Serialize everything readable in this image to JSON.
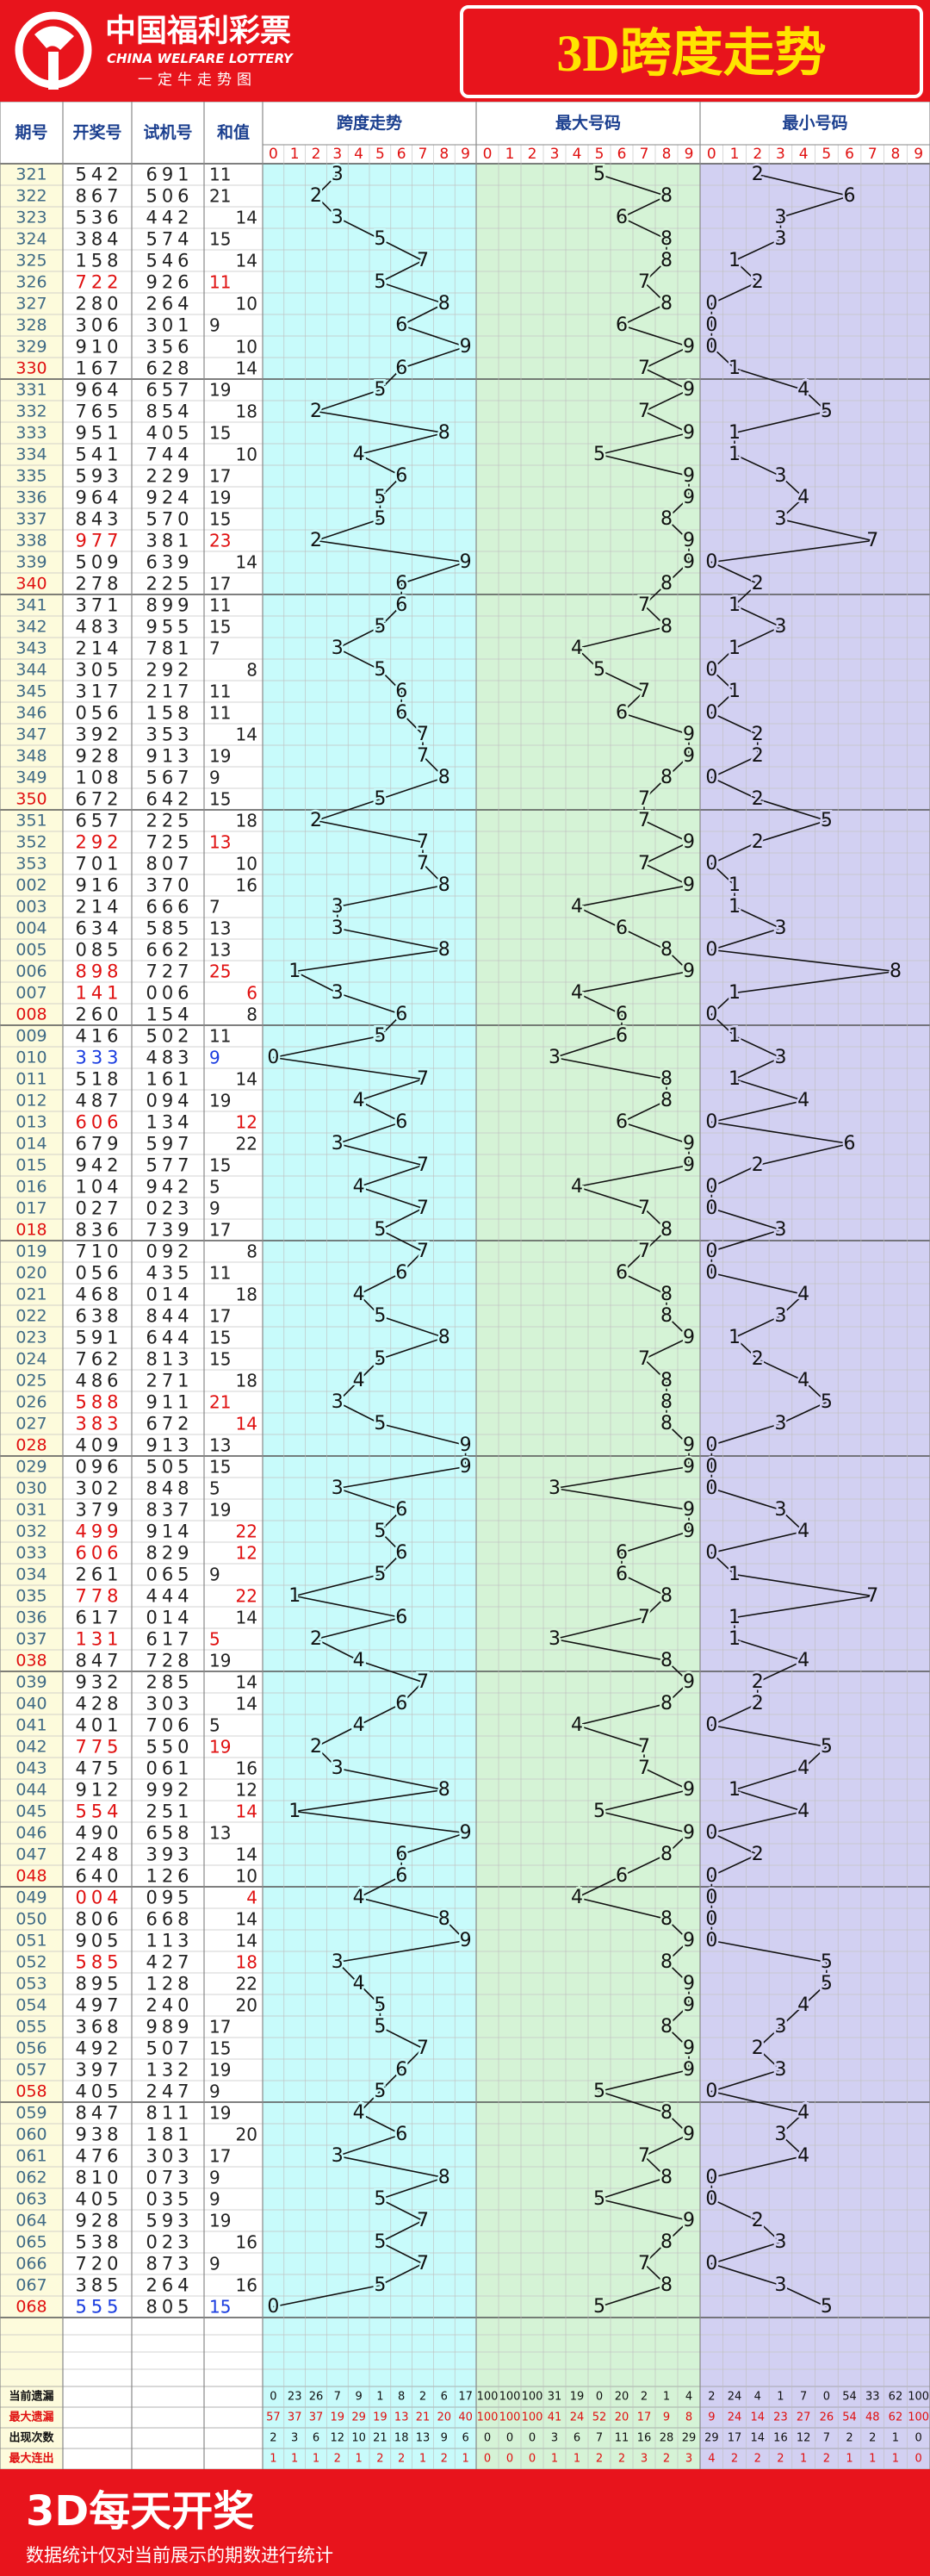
{
  "header": {
    "logo_cn": "中国福利彩票",
    "logo_en": "CHINA WELFARE LOTTERY",
    "logo_sub": "一定牛走势图",
    "title": "3D跨度走势"
  },
  "table": {
    "columns": [
      "期号",
      "开奖号",
      "试机号",
      "和值"
    ],
    "sections": [
      "跨度走势",
      "最大号码",
      "最小号码"
    ],
    "digits": [
      0,
      1,
      2,
      3,
      4,
      5,
      6,
      7,
      8,
      9
    ],
    "rows": [
      [
        "321",
        "542",
        "691",
        11,
        3,
        5,
        2
      ],
      [
        "322",
        "867",
        "506",
        21,
        2,
        8,
        6
      ],
      [
        "323",
        "536",
        "442",
        14,
        3,
        6,
        3
      ],
      [
        "324",
        "384",
        "574",
        15,
        5,
        8,
        3
      ],
      [
        "325",
        "158",
        "546",
        14,
        7,
        8,
        1
      ],
      [
        "326",
        "722",
        "926",
        11,
        5,
        7,
        2
      ],
      [
        "327",
        "280",
        "264",
        10,
        8,
        8,
        0
      ],
      [
        "328",
        "306",
        "301",
        9,
        6,
        6,
        0
      ],
      [
        "329",
        "910",
        "356",
        10,
        9,
        9,
        0
      ],
      [
        "330",
        "167",
        "628",
        14,
        6,
        7,
        1
      ],
      [
        "331",
        "964",
        "657",
        19,
        5,
        9,
        4
      ],
      [
        "332",
        "765",
        "854",
        18,
        2,
        7,
        5
      ],
      [
        "333",
        "951",
        "405",
        15,
        8,
        9,
        1
      ],
      [
        "334",
        "541",
        "744",
        10,
        4,
        5,
        1
      ],
      [
        "335",
        "593",
        "229",
        17,
        6,
        9,
        3
      ],
      [
        "336",
        "964",
        "924",
        19,
        5,
        9,
        4
      ],
      [
        "337",
        "843",
        "570",
        15,
        5,
        8,
        3
      ],
      [
        "338",
        "977",
        "381",
        23,
        2,
        9,
        7
      ],
      [
        "339",
        "509",
        "639",
        14,
        9,
        9,
        0
      ],
      [
        "340",
        "278",
        "225",
        17,
        6,
        8,
        2
      ],
      [
        "341",
        "371",
        "899",
        11,
        6,
        7,
        1
      ],
      [
        "342",
        "483",
        "955",
        15,
        5,
        8,
        3
      ],
      [
        "343",
        "214",
        "781",
        7,
        3,
        4,
        1
      ],
      [
        "344",
        "305",
        "292",
        8,
        5,
        5,
        0
      ],
      [
        "345",
        "317",
        "217",
        11,
        6,
        7,
        1
      ],
      [
        "346",
        "056",
        "158",
        11,
        6,
        6,
        0
      ],
      [
        "347",
        "392",
        "353",
        14,
        7,
        9,
        2
      ],
      [
        "348",
        "928",
        "913",
        19,
        7,
        9,
        2
      ],
      [
        "349",
        "108",
        "567",
        9,
        8,
        8,
        0
      ],
      [
        "350",
        "672",
        "642",
        15,
        5,
        7,
        2
      ],
      [
        "351",
        "657",
        "225",
        18,
        2,
        7,
        5
      ],
      [
        "352",
        "292",
        "725",
        13,
        7,
        9,
        2
      ],
      [
        "353",
        "701",
        "807",
        10,
        7,
        7,
        0
      ],
      [
        "002",
        "916",
        "370",
        16,
        8,
        9,
        1
      ],
      [
        "003",
        "214",
        "666",
        7,
        3,
        4,
        1
      ],
      [
        "004",
        "634",
        "585",
        13,
        3,
        6,
        3
      ],
      [
        "005",
        "085",
        "662",
        13,
        8,
        8,
        0
      ],
      [
        "006",
        "898",
        "727",
        25,
        1,
        9,
        8
      ],
      [
        "007",
        "141",
        "006",
        6,
        3,
        4,
        1
      ],
      [
        "008",
        "260",
        "154",
        8,
        6,
        6,
        0
      ],
      [
        "009",
        "416",
        "502",
        11,
        5,
        6,
        1
      ],
      [
        "010",
        "333",
        "483",
        9,
        0,
        3,
        3
      ],
      [
        "011",
        "518",
        "161",
        14,
        7,
        8,
        1
      ],
      [
        "012",
        "487",
        "094",
        19,
        4,
        8,
        4
      ],
      [
        "013",
        "606",
        "134",
        12,
        6,
        6,
        0
      ],
      [
        "014",
        "679",
        "597",
        22,
        3,
        9,
        6
      ],
      [
        "015",
        "942",
        "577",
        15,
        7,
        9,
        2
      ],
      [
        "016",
        "104",
        "942",
        5,
        4,
        4,
        0
      ],
      [
        "017",
        "027",
        "023",
        9,
        7,
        7,
        0
      ],
      [
        "018",
        "836",
        "739",
        17,
        5,
        8,
        3
      ],
      [
        "019",
        "710",
        "092",
        8,
        7,
        7,
        0
      ],
      [
        "020",
        "056",
        "435",
        11,
        6,
        6,
        0
      ],
      [
        "021",
        "468",
        "014",
        18,
        4,
        8,
        4
      ],
      [
        "022",
        "638",
        "844",
        17,
        5,
        8,
        3
      ],
      [
        "023",
        "591",
        "644",
        15,
        8,
        9,
        1
      ],
      [
        "024",
        "762",
        "813",
        15,
        5,
        7,
        2
      ],
      [
        "025",
        "486",
        "271",
        18,
        4,
        8,
        4
      ],
      [
        "026",
        "588",
        "911",
        21,
        3,
        8,
        5
      ],
      [
        "027",
        "383",
        "672",
        14,
        5,
        8,
        3
      ],
      [
        "028",
        "409",
        "913",
        13,
        9,
        9,
        0
      ],
      [
        "029",
        "096",
        "505",
        15,
        9,
        9,
        0
      ],
      [
        "030",
        "302",
        "848",
        5,
        3,
        3,
        0
      ],
      [
        "031",
        "379",
        "837",
        19,
        6,
        9,
        3
      ],
      [
        "032",
        "499",
        "914",
        22,
        5,
        9,
        4
      ],
      [
        "033",
        "606",
        "829",
        12,
        6,
        6,
        0
      ],
      [
        "034",
        "261",
        "065",
        9,
        5,
        6,
        1
      ],
      [
        "035",
        "778",
        "444",
        22,
        1,
        8,
        7
      ],
      [
        "036",
        "617",
        "014",
        14,
        6,
        7,
        1
      ],
      [
        "037",
        "131",
        "617",
        5,
        2,
        3,
        1
      ],
      [
        "038",
        "847",
        "728",
        19,
        4,
        8,
        4
      ],
      [
        "039",
        "932",
        "285",
        14,
        7,
        9,
        2
      ],
      [
        "040",
        "428",
        "303",
        14,
        6,
        8,
        2
      ],
      [
        "041",
        "401",
        "706",
        5,
        4,
        4,
        0
      ],
      [
        "042",
        "775",
        "550",
        19,
        2,
        7,
        5
      ],
      [
        "043",
        "475",
        "061",
        16,
        3,
        7,
        4
      ],
      [
        "044",
        "912",
        "992",
        12,
        8,
        9,
        1
      ],
      [
        "045",
        "554",
        "251",
        14,
        1,
        5,
        4
      ],
      [
        "046",
        "490",
        "658",
        13,
        9,
        9,
        0
      ],
      [
        "047",
        "248",
        "393",
        14,
        6,
        8,
        2
      ],
      [
        "048",
        "640",
        "126",
        10,
        6,
        6,
        0
      ],
      [
        "049",
        "004",
        "095",
        4,
        4,
        4,
        0
      ],
      [
        "050",
        "806",
        "668",
        14,
        8,
        8,
        0
      ],
      [
        "051",
        "905",
        "113",
        14,
        9,
        9,
        0
      ],
      [
        "052",
        "585",
        "427",
        18,
        3,
        8,
        5
      ],
      [
        "053",
        "895",
        "128",
        22,
        4,
        9,
        5
      ],
      [
        "054",
        "497",
        "240",
        20,
        5,
        9,
        4
      ],
      [
        "055",
        "368",
        "989",
        17,
        5,
        8,
        3
      ],
      [
        "056",
        "492",
        "507",
        15,
        7,
        9,
        2
      ],
      [
        "057",
        "397",
        "132",
        19,
        6,
        9,
        3
      ],
      [
        "058",
        "405",
        "247",
        9,
        5,
        5,
        0
      ],
      [
        "059",
        "847",
        "811",
        19,
        4,
        8,
        4
      ],
      [
        "060",
        "938",
        "181",
        20,
        6,
        9,
        3
      ],
      [
        "061",
        "476",
        "303",
        17,
        3,
        7,
        4
      ],
      [
        "062",
        "810",
        "073",
        9,
        8,
        8,
        0
      ],
      [
        "063",
        "405",
        "035",
        9,
        5,
        5,
        0
      ],
      [
        "064",
        "928",
        "593",
        19,
        7,
        9,
        2
      ],
      [
        "065",
        "538",
        "023",
        16,
        5,
        8,
        3
      ],
      [
        "066",
        "720",
        "873",
        9,
        7,
        7,
        0
      ],
      [
        "067",
        "385",
        "264",
        16,
        5,
        8,
        3
      ],
      [
        "068",
        "555",
        "805",
        15,
        0,
        5,
        5
      ]
    ]
  },
  "stats": {
    "rows": [
      {
        "label": "当前遗漏",
        "values": [
          0,
          23,
          26,
          7,
          9,
          1,
          8,
          2,
          6,
          17,
          100,
          100,
          100,
          31,
          19,
          0,
          20,
          2,
          1,
          4,
          2,
          24,
          4,
          1,
          7,
          0,
          54,
          33,
          62,
          100
        ]
      },
      {
        "label": "最大遗漏",
        "values": [
          57,
          37,
          37,
          19,
          29,
          19,
          13,
          21,
          20,
          40,
          100,
          100,
          100,
          41,
          24,
          52,
          20,
          17,
          9,
          8,
          9,
          24,
          14,
          23,
          27,
          26,
          54,
          48,
          62,
          100
        ]
      },
      {
        "label": "出现次数",
        "values": [
          2,
          3,
          6,
          12,
          10,
          21,
          18,
          13,
          9,
          6,
          0,
          0,
          0,
          3,
          6,
          7,
          11,
          16,
          28,
          29,
          29,
          17,
          14,
          16,
          12,
          7,
          2,
          2,
          1,
          0
        ]
      },
      {
        "label": "最大连出",
        "values": [
          1,
          1,
          1,
          2,
          1,
          2,
          2,
          1,
          2,
          1,
          0,
          0,
          0,
          1,
          1,
          2,
          2,
          3,
          2,
          3,
          4,
          2,
          2,
          2,
          1,
          2,
          1,
          1,
          1,
          0
        ]
      }
    ]
  },
  "footer": {
    "title": "3D每天开奖",
    "note": "数据统计仅对当前展示的期数进行统计"
  }
}
